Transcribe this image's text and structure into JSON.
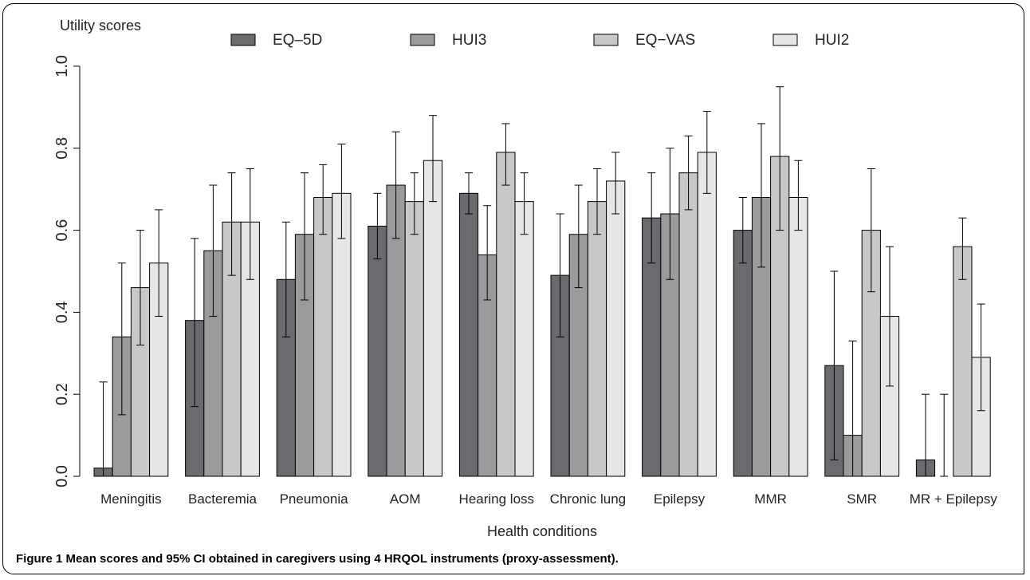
{
  "chart_data": {
    "type": "bar",
    "ylabel": "Utility scores",
    "xlabel": "Health conditions",
    "ylim": [
      0,
      1
    ],
    "yticks": [
      "0.0",
      "0.2",
      "0.4",
      "0.6",
      "0.8",
      "1.0"
    ],
    "grid": false,
    "legend_position": "top",
    "categories": [
      "Meningitis",
      "Bacteremia",
      "Pneumonia",
      "AOM",
      "Hearing loss",
      "Chronic lung",
      "Epilepsy",
      "MMR",
      "SMR",
      "MR + Epilepsy"
    ],
    "series": [
      {
        "name": "EQ–5D",
        "color": "#6b6b6f",
        "values": [
          0.02,
          0.38,
          0.48,
          0.61,
          0.69,
          0.49,
          0.63,
          0.6,
          0.27,
          0.04
        ],
        "ci_low": [
          0.0,
          0.17,
          0.34,
          0.53,
          0.64,
          0.34,
          0.52,
          0.52,
          0.04,
          0.0
        ],
        "ci_high": [
          0.23,
          0.58,
          0.62,
          0.69,
          0.74,
          0.64,
          0.74,
          0.68,
          0.5,
          0.2
        ]
      },
      {
        "name": "HUI3",
        "color": "#9b9b9e",
        "values": [
          0.34,
          0.55,
          0.59,
          0.71,
          0.54,
          0.59,
          0.64,
          0.68,
          0.1,
          0.0
        ],
        "ci_low": [
          0.15,
          0.39,
          0.43,
          0.58,
          0.43,
          0.46,
          0.48,
          0.51,
          0.0,
          0.0
        ],
        "ci_high": [
          0.52,
          0.71,
          0.74,
          0.84,
          0.66,
          0.71,
          0.8,
          0.86,
          0.33,
          0.2
        ]
      },
      {
        "name": "EQ−VAS",
        "color": "#c8c8ca",
        "values": [
          0.46,
          0.62,
          0.68,
          0.67,
          0.79,
          0.67,
          0.74,
          0.78,
          0.6,
          0.56
        ],
        "ci_low": [
          0.32,
          0.49,
          0.59,
          0.59,
          0.71,
          0.59,
          0.65,
          0.6,
          0.45,
          0.48
        ],
        "ci_high": [
          0.6,
          0.74,
          0.76,
          0.74,
          0.86,
          0.75,
          0.83,
          0.95,
          0.75,
          0.63
        ]
      },
      {
        "name": "HUI2",
        "color": "#e6e6e7",
        "values": [
          0.52,
          0.62,
          0.69,
          0.77,
          0.67,
          0.72,
          0.79,
          0.68,
          0.39,
          0.29
        ],
        "ci_low": [
          0.39,
          0.48,
          0.58,
          0.67,
          0.59,
          0.64,
          0.69,
          0.6,
          0.22,
          0.16
        ],
        "ci_high": [
          0.65,
          0.75,
          0.81,
          0.88,
          0.74,
          0.79,
          0.89,
          0.77,
          0.56,
          0.42
        ]
      }
    ]
  },
  "caption": {
    "lead": "Figure 1",
    "text": " Mean scores and 95% CI obtained in caregivers using 4 HRQOL instruments (proxy-assessment)."
  }
}
